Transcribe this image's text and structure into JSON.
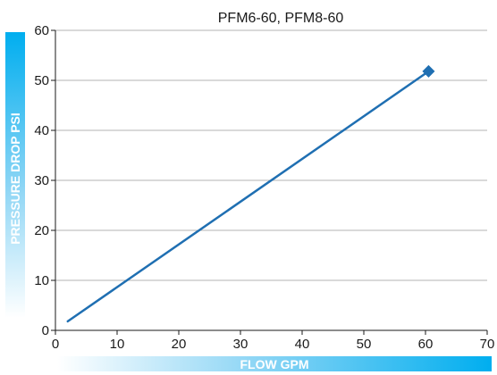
{
  "chart_data": {
    "type": "line",
    "title": "PFM6-60, PFM8-60",
    "xlabel": "FLOW GPM",
    "ylabel": "PRESSURE DROP PSI",
    "xlim": [
      0,
      70
    ],
    "ylim": [
      0,
      60
    ],
    "x_ticks": [
      "0",
      "10",
      "20",
      "30",
      "40",
      "50",
      "60",
      "70"
    ],
    "y_ticks": [
      "0",
      "10",
      "20",
      "30",
      "40",
      "50",
      "60"
    ],
    "grid": true,
    "series": [
      {
        "x": [
          2,
          60.5
        ],
        "y": [
          1.8,
          51.8
        ],
        "color": "#1f6fb2",
        "end_marker": "diamond"
      }
    ]
  }
}
